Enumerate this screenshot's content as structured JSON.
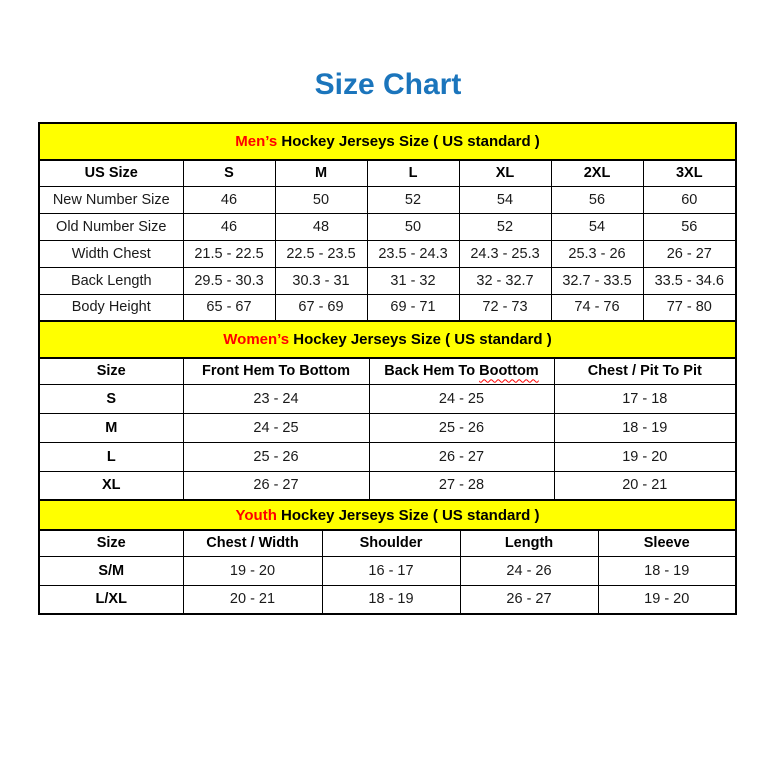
{
  "page": {
    "title": "Size Chart",
    "title_color": "#1b75bc"
  },
  "colors": {
    "band_background": "#ffff00",
    "accent_red": "#ff0000",
    "title_blue": "#1b75bc",
    "border_black": "#000000",
    "value_text": "#1a1a1a"
  },
  "tables": [
    {
      "id": "mens",
      "band": {
        "accent": "Men’s",
        "rest": "Hockey Jerseys Size ( US standard )"
      },
      "bold_labels": false,
      "columns": [
        "US Size",
        "S",
        "M",
        "L",
        "XL",
        "2XL",
        "3XL"
      ],
      "rows": [
        {
          "label": "New Number Size",
          "values": [
            "46",
            "50",
            "52",
            "54",
            "56",
            "60"
          ]
        },
        {
          "label": "Old Number Size",
          "values": [
            "46",
            "48",
            "50",
            "52",
            "54",
            "56"
          ]
        },
        {
          "label": "Width Chest",
          "values": [
            "21.5 - 22.5",
            "22.5 - 23.5",
            "23.5 - 24.3",
            "24.3 - 25.3",
            "25.3 - 26",
            "26 - 27"
          ]
        },
        {
          "label": "Back Length",
          "values": [
            "29.5 - 30.3",
            "30.3 - 31",
            "31 - 32",
            "32 - 32.7",
            "32.7 - 33.5",
            "33.5 - 34.6"
          ]
        },
        {
          "label": "Body Height",
          "values": [
            "65 - 67",
            "67 - 69",
            "69 - 71",
            "72 - 73",
            "74 - 76",
            "77 - 80"
          ]
        }
      ]
    },
    {
      "id": "womens",
      "band": {
        "accent": "Women’s",
        "rest": "Hockey Jerseys Size ( US standard )"
      },
      "bold_labels": true,
      "columns": [
        "Size",
        "Front Hem To Bottom",
        {
          "label": "Back Hem To",
          "wavy_suffix": "Boottom"
        },
        "Chest / Pit To Pit"
      ],
      "rows": [
        {
          "label": "S",
          "values": [
            "23 - 24",
            "24 - 25",
            "17 - 18"
          ]
        },
        {
          "label": "M",
          "values": [
            "24 - 25",
            "25 - 26",
            "18 - 19"
          ]
        },
        {
          "label": "L",
          "values": [
            "25 - 26",
            "26 - 27",
            "19 - 20"
          ]
        },
        {
          "label": "XL",
          "values": [
            "26 - 27",
            "27 - 28",
            "20 - 21"
          ]
        }
      ]
    },
    {
      "id": "youth",
      "band": {
        "accent": "Youth",
        "rest": "Hockey Jerseys Size ( US standard )"
      },
      "bold_labels": true,
      "columns": [
        "Size",
        "Chest / Width",
        "Shoulder",
        "Length",
        "Sleeve"
      ],
      "rows": [
        {
          "label": "S/M",
          "values": [
            "19 - 20",
            "16 - 17",
            "24 - 26",
            "18 - 19"
          ]
        },
        {
          "label": "L/XL",
          "values": [
            "20 - 21",
            "18 - 19",
            "26 - 27",
            "19 - 20"
          ]
        }
      ]
    }
  ]
}
